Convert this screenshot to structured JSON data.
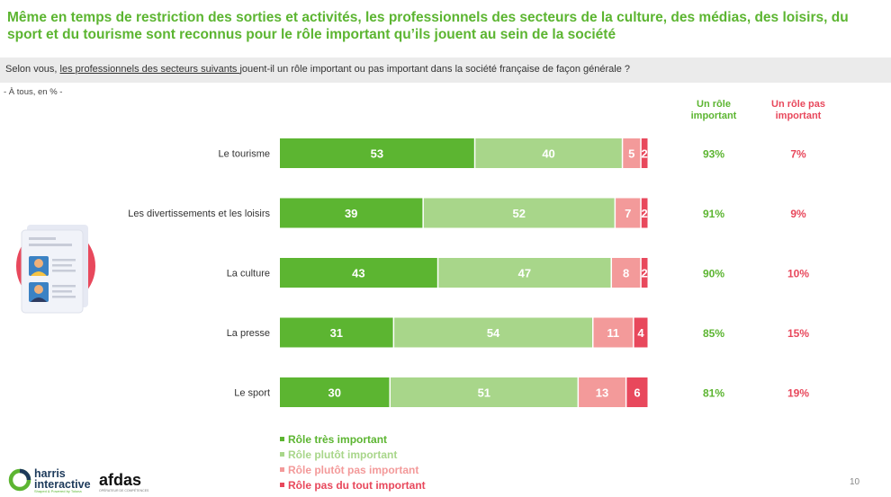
{
  "title": "Même en temps de restriction des sorties et activités, les professionnels des secteurs de la culture, des médias, des loisirs, du sport et du tourisme sont reconnus pour le rôle important qu’ils jouent au sein de la société",
  "question": {
    "prefix": "Selon vous, ",
    "underlined": "les professionnels des secteurs suivants ",
    "suffix": "jouent-il un rôle important ou pas important dans la société française de façon générale ?"
  },
  "base": "- À tous, en % -",
  "columns": {
    "important": "Un rôle important",
    "not_important": "Un rôle pas important"
  },
  "colors": {
    "tres_important": "#5cb531",
    "plutot_important": "#a8d68a",
    "plutot_pas_important": "#f39a9a",
    "pas_du_tout_important": "#e8485c"
  },
  "chart_data": {
    "type": "bar",
    "orientation": "horizontal",
    "stacked": true,
    "categories": [
      "Le tourisme",
      "Les divertissements et les loisirs",
      "La culture",
      "La presse",
      "Le sport"
    ],
    "series": [
      {
        "name": "Rôle très important",
        "values": [
          53,
          39,
          43,
          31,
          30
        ]
      },
      {
        "name": "Rôle plutôt important",
        "values": [
          40,
          52,
          47,
          54,
          51
        ]
      },
      {
        "name": "Rôle plutôt pas important",
        "values": [
          5,
          7,
          8,
          11,
          13
        ]
      },
      {
        "name": "Rôle pas du tout important",
        "values": [
          2,
          2,
          2,
          4,
          6
        ]
      }
    ],
    "totals_important": [
      "93%",
      "91%",
      "90%",
      "85%",
      "81%"
    ],
    "totals_not_important": [
      "7%",
      "9%",
      "10%",
      "15%",
      "19%"
    ],
    "legend_position": "bottom"
  },
  "legend": [
    "Rôle très important",
    "Rôle plutôt important",
    "Rôle plutôt pas important",
    "Rôle pas du tout important"
  ],
  "footer": {
    "page_number": "10",
    "logo_harris": "harris interactive",
    "logo_harris_tagline": "Shaped & Powered by Toluna",
    "logo_afdas": "afdas",
    "logo_afdas_tagline": "OPÉRATEUR DE COMPÉTENCES"
  }
}
